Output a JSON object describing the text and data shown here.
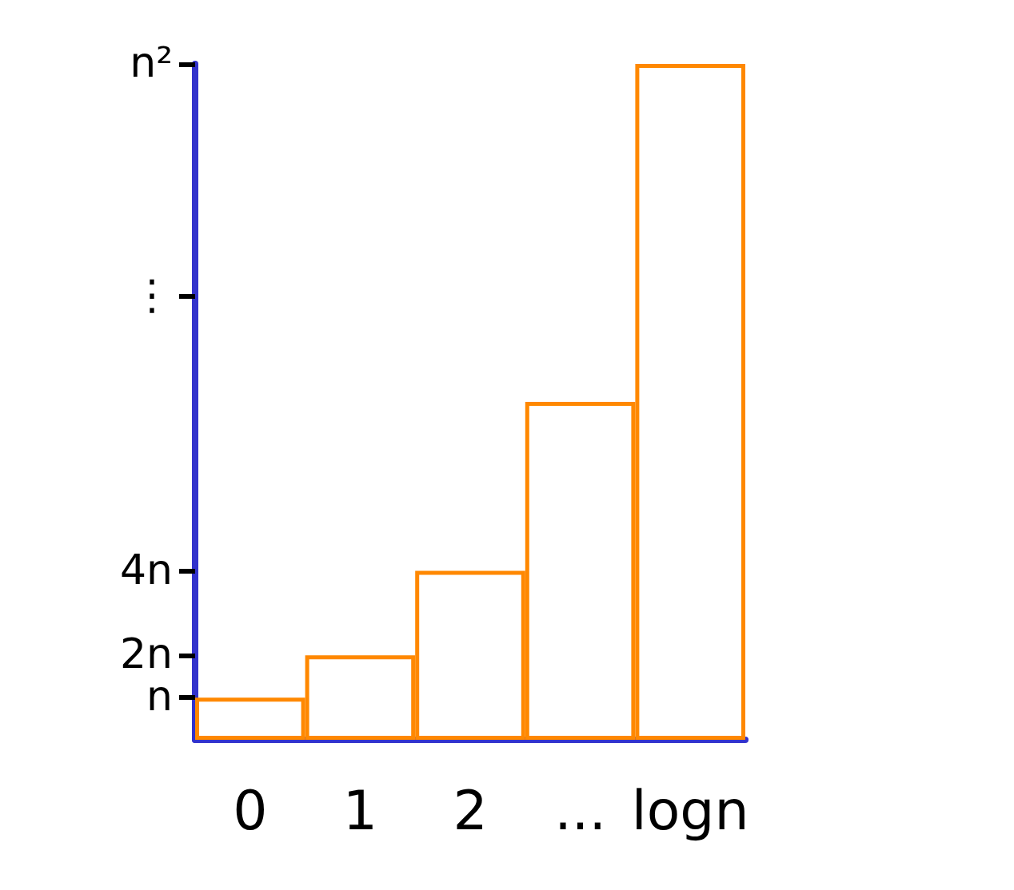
{
  "chart_data": {
    "type": "bar",
    "categories": [
      "0",
      "1",
      "2",
      "...",
      "logn"
    ],
    "values": [
      1,
      2,
      4,
      8,
      16
    ],
    "color": "#ff8800",
    "ylim": [
      0,
      16
    ],
    "yticks": [
      {
        "value": 1,
        "label": "n"
      },
      {
        "value": 2,
        "label": "2n"
      },
      {
        "value": 4,
        "label": "4n"
      },
      {
        "value": 10.5,
        "label": "⋮"
      },
      {
        "value": 16,
        "label": "n²"
      }
    ],
    "grid": false
  }
}
